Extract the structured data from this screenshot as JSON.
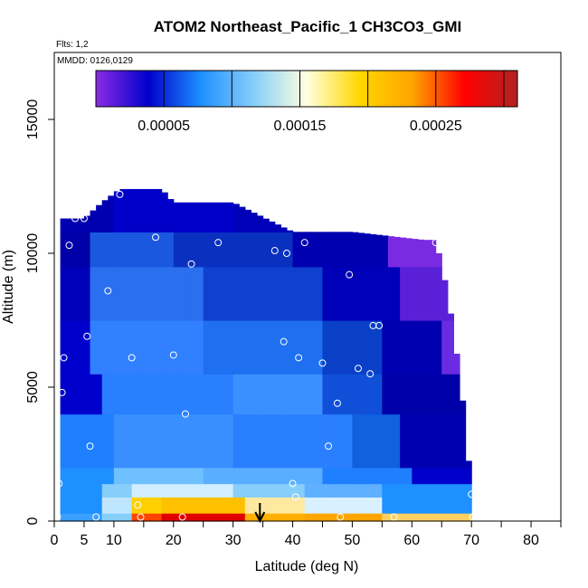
{
  "chart_data": {
    "type": "heatmap",
    "title": "ATOM2 Northeast_Pacific_1 CH3CO3_GMI",
    "subtitle_lines": [
      "Flts: 1,2",
      "MMDD: 0126,0129"
    ],
    "xlabel": "Latitude (deg N)",
    "ylabel": "Altitude (m)",
    "xlim": [
      0,
      85
    ],
    "ylim": [
      0,
      17500
    ],
    "x_ticks": [
      0,
      5,
      10,
      20,
      30,
      40,
      50,
      60,
      70,
      80
    ],
    "y_ticks": [
      0,
      5000,
      10000,
      15000
    ],
    "colorbar": {
      "range": [
        0,
        0.00031
      ],
      "tick_values": [
        5e-05,
        0.00015,
        0.00025
      ],
      "tick_labels": [
        "0.00005",
        "0.00015",
        "0.00025"
      ],
      "colors": [
        "#8a2be2",
        "#0000cd",
        "#1e90ff",
        "#87cefa",
        "#ffffe0",
        "#ffd700",
        "#ffa500",
        "#ff0000",
        "#b22222"
      ]
    },
    "curtain": {
      "lat_range": [
        1,
        70
      ],
      "top_altitude_profile": [
        [
          1,
          11300
        ],
        [
          3,
          11300
        ],
        [
          5,
          11300
        ],
        [
          8,
          11900
        ],
        [
          11,
          12400
        ],
        [
          18,
          12400
        ],
        [
          20,
          11900
        ],
        [
          30,
          11900
        ],
        [
          40,
          10800
        ],
        [
          50,
          10800
        ],
        [
          62,
          10500
        ],
        [
          64,
          10500
        ],
        [
          65,
          9500
        ],
        [
          66,
          8500
        ],
        [
          67,
          7000
        ],
        [
          68,
          5500
        ],
        [
          69,
          3500
        ],
        [
          70,
          1000
        ]
      ],
      "cells": [
        {
          "alt": [
            0,
            300
          ],
          "segments": [
            [
              1,
              8,
              "#3aa0ff"
            ],
            [
              8,
              13,
              "#87cefa"
            ],
            [
              13,
              18,
              "#ff4500"
            ],
            [
              18,
              32,
              "#e00000"
            ],
            [
              32,
              42,
              "#ffb000"
            ],
            [
              42,
              55,
              "#ffa500"
            ],
            [
              55,
              70,
              "#ffd060"
            ]
          ]
        },
        {
          "alt": [
            300,
            900
          ],
          "segments": [
            [
              1,
              8,
              "#1e90ff"
            ],
            [
              8,
              13,
              "#bfe6ff"
            ],
            [
              13,
              18,
              "#ffd000"
            ],
            [
              18,
              32,
              "#ffc000"
            ],
            [
              32,
              42,
              "#ffe9a0"
            ],
            [
              42,
              55,
              "#d8f0ff"
            ],
            [
              55,
              70,
              "#1e90ff"
            ]
          ]
        },
        {
          "alt": [
            900,
            1400
          ],
          "segments": [
            [
              1,
              8,
              "#1e90ff"
            ],
            [
              8,
              13,
              "#87cefa"
            ],
            [
              13,
              30,
              "#d0eeff"
            ],
            [
              30,
              42,
              "#87cefa"
            ],
            [
              42,
              55,
              "#5fb0ff"
            ],
            [
              55,
              70,
              "#1e90ff"
            ]
          ]
        },
        {
          "alt": [
            1400,
            2000
          ],
          "segments": [
            [
              1,
              10,
              "#1e90ff"
            ],
            [
              10,
              25,
              "#6ec0ff"
            ],
            [
              25,
              45,
              "#5aaeff"
            ],
            [
              45,
              60,
              "#1e7fff"
            ],
            [
              60,
              70,
              "#0000cd"
            ]
          ]
        },
        {
          "alt": [
            2000,
            4000
          ],
          "segments": [
            [
              1,
              10,
              "#1e7fff"
            ],
            [
              10,
              30,
              "#3a8fff"
            ],
            [
              30,
              50,
              "#2a7fff"
            ],
            [
              50,
              58,
              "#1060e0"
            ],
            [
              58,
              70,
              "#0000b0"
            ]
          ]
        },
        {
          "alt": [
            4000,
            5500
          ],
          "segments": [
            [
              1,
              8,
              "#0000cd"
            ],
            [
              8,
              30,
              "#2a7fff"
            ],
            [
              30,
              45,
              "#3a90ff"
            ],
            [
              45,
              55,
              "#1050d8"
            ],
            [
              55,
              70,
              "#0000a8"
            ]
          ]
        },
        {
          "alt": [
            5500,
            7500
          ],
          "segments": [
            [
              1,
              6,
              "#0000cd"
            ],
            [
              6,
              25,
              "#3080ff"
            ],
            [
              25,
              45,
              "#1e70f0"
            ],
            [
              45,
              55,
              "#0a40c8"
            ],
            [
              55,
              65,
              "#0000b0"
            ],
            [
              65,
              70,
              "#6a2be2"
            ]
          ]
        },
        {
          "alt": [
            7500,
            9500
          ],
          "segments": [
            [
              1,
              6,
              "#0000b8"
            ],
            [
              6,
              25,
              "#2a6ff0"
            ],
            [
              25,
              45,
              "#1040d0"
            ],
            [
              45,
              58,
              "#0000b8"
            ],
            [
              58,
              68,
              "#5a20d8"
            ]
          ]
        },
        {
          "alt": [
            9500,
            10800
          ],
          "segments": [
            [
              1,
              6,
              "#0000a8"
            ],
            [
              6,
              20,
              "#1a58e0"
            ],
            [
              20,
              40,
              "#0a30c0"
            ],
            [
              40,
              56,
              "#0000b0"
            ],
            [
              56,
              65,
              "#7a2be2"
            ]
          ]
        },
        {
          "alt": [
            10800,
            12400
          ],
          "segments": [
            [
              1,
              10,
              "#0000b0"
            ],
            [
              10,
              30,
              "#0000c8"
            ],
            [
              30,
              50,
              "#0000b8"
            ]
          ]
        }
      ]
    },
    "flight_points": [
      [
        0.5,
        150
      ],
      [
        0.8,
        1400
      ],
      [
        1.3,
        4800
      ],
      [
        1.6,
        6100
      ],
      [
        2.5,
        10300
      ],
      [
        3.5,
        11300
      ],
      [
        5,
        11300
      ],
      [
        5.5,
        6900
      ],
      [
        6,
        2800
      ],
      [
        7,
        150
      ],
      [
        9,
        8600
      ],
      [
        11,
        12200
      ],
      [
        13,
        6100
      ],
      [
        14,
        600
      ],
      [
        14.5,
        150
      ],
      [
        17,
        10600
      ],
      [
        20,
        6200
      ],
      [
        21.5,
        150
      ],
      [
        22,
        4000
      ],
      [
        23,
        9600
      ],
      [
        27.5,
        10400
      ],
      [
        37,
        10100
      ],
      [
        38.5,
        6700
      ],
      [
        39,
        10000
      ],
      [
        40,
        1400
      ],
      [
        40.5,
        900
      ],
      [
        41,
        6100
      ],
      [
        42,
        10400
      ],
      [
        45,
        5900
      ],
      [
        46,
        2800
      ],
      [
        47.5,
        4400
      ],
      [
        48,
        150
      ],
      [
        49.5,
        9200
      ],
      [
        51,
        5700
      ],
      [
        53,
        5500
      ],
      [
        53.5,
        7300
      ],
      [
        54.5,
        7300
      ],
      [
        57,
        150
      ],
      [
        64,
        10400
      ],
      [
        69,
        5200
      ],
      [
        70,
        1000
      ],
      [
        70.2,
        150
      ]
    ],
    "arrow_marker": {
      "lat": 34.5
    }
  }
}
